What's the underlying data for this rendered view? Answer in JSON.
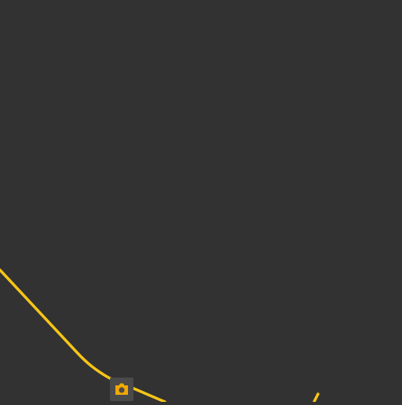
{
  "map": {
    "background_color": "#323232",
    "roads": [
      {
        "name": "road-main",
        "color": "#f5c518"
      },
      {
        "name": "road-spur",
        "color": "#f5c518"
      }
    ],
    "poi_markers": [
      {
        "icon": "camera-icon",
        "background_color": "#4a4a4a",
        "icon_color": "#f2a900"
      }
    ]
  }
}
